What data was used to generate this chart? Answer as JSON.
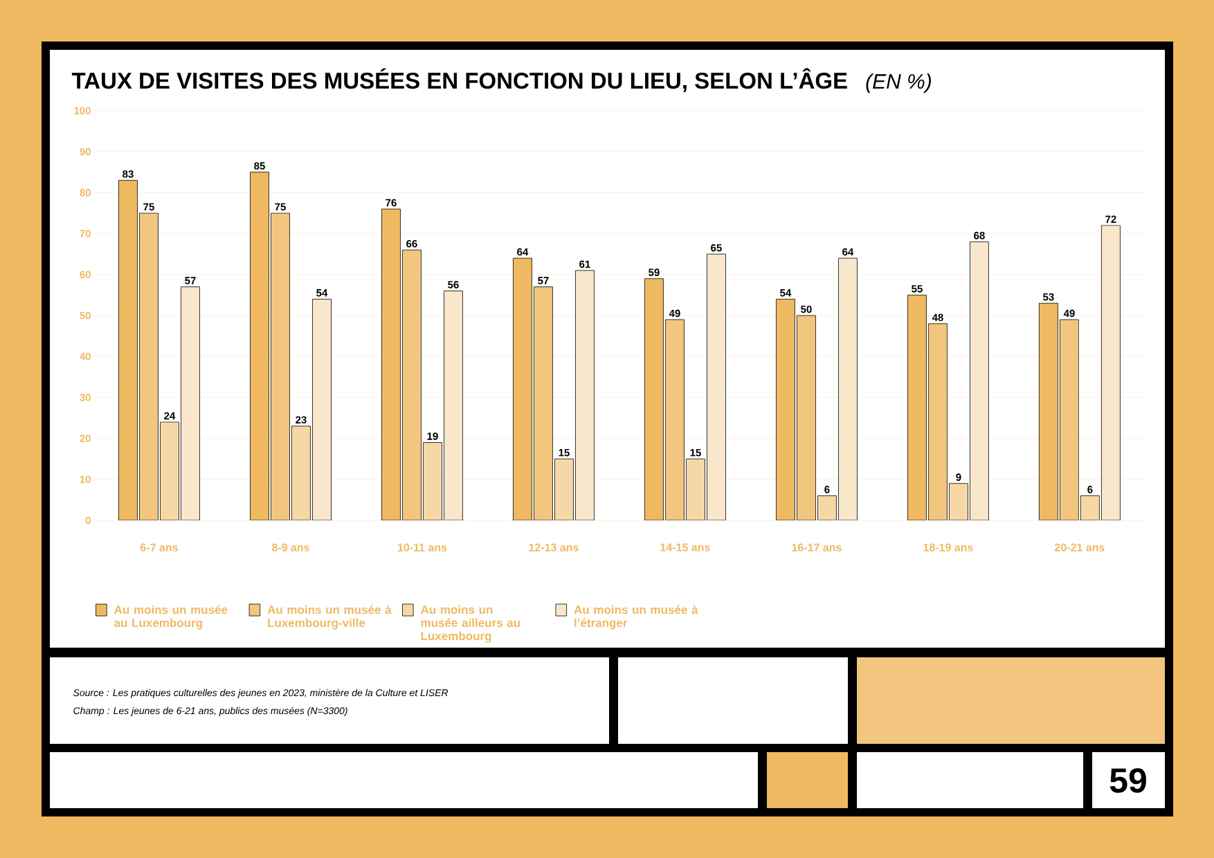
{
  "chart_data": {
    "type": "bar",
    "title": "TAUX DE VISITES DES MUSÉES EN FONCTION DU LIEU, SELON L’ÂGE",
    "subtitle": "(EN %)",
    "categories": [
      "6-7 ans",
      "8-9 ans",
      "10-11 ans",
      "12-13 ans",
      "14-15 ans",
      "16-17 ans",
      "18-19 ans",
      "20-21 ans"
    ],
    "series": [
      {
        "name": "Au moins un musée au Luxembourg",
        "color": "#efb961",
        "values": [
          83,
          85,
          76,
          64,
          59,
          54,
          55,
          53
        ]
      },
      {
        "name": "Au moins un musée à Luxembourg-ville",
        "color": "#f2c67f",
        "values": [
          75,
          75,
          66,
          57,
          49,
          50,
          48,
          49
        ]
      },
      {
        "name": "Au moins un musée ailleurs au Luxembourg",
        "color": "#f6d7a6",
        "values": [
          24,
          23,
          19,
          15,
          15,
          6,
          9,
          6
        ]
      },
      {
        "name": "Au moins un musée à l’étranger",
        "color": "#f9e7cb",
        "values": [
          57,
          54,
          56,
          61,
          65,
          64,
          68,
          72
        ]
      }
    ],
    "ylim": [
      0,
      100
    ],
    "yticks": [
      0,
      10,
      20,
      30,
      40,
      50,
      60,
      70,
      80,
      90,
      100
    ],
    "grid": "y",
    "legend": "bottom left",
    "data_labels": true,
    "annotations": [
      "Source : Les pratiques culturelles des jeunes en 2023, ministère de la Culture et LISER",
      "Champ : Les jeunes de 6-21 ans, publics des musées (N=3300)",
      "59"
    ]
  }
}
